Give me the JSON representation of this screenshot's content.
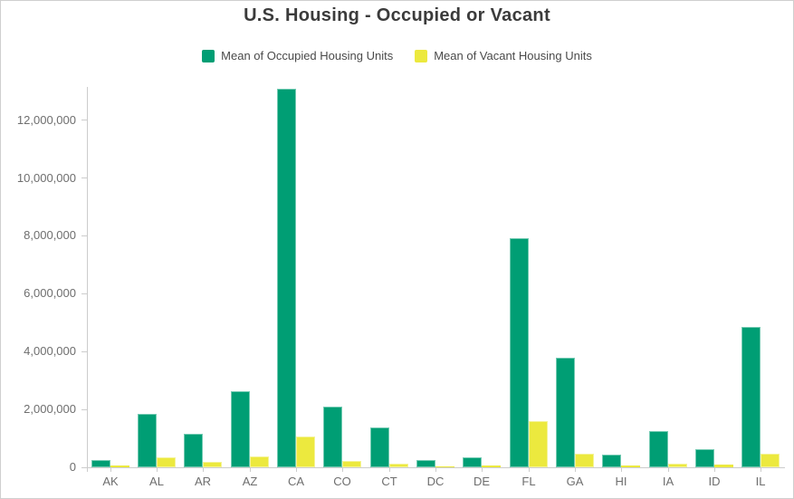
{
  "title": "U.S. Housing - Occupied or Vacant",
  "legend": {
    "items": [
      {
        "label": "Mean of Occupied Housing Units",
        "color": "#009e74"
      },
      {
        "label": "Mean of Vacant Housing Units",
        "color": "#ece93e"
      }
    ]
  },
  "chart_data": {
    "type": "bar",
    "title": "U.S. Housing - Occupied or Vacant",
    "categories": [
      "AK",
      "AL",
      "AR",
      "AZ",
      "CA",
      "CO",
      "CT",
      "DC",
      "DE",
      "FL",
      "GA",
      "HI",
      "IA",
      "ID",
      "IL"
    ],
    "series": [
      {
        "name": "Mean of Occupied Housing Units",
        "color": "#009e74",
        "values": [
          240000,
          1860000,
          1150000,
          2620000,
          13080000,
          2090000,
          1370000,
          265000,
          340000,
          7930000,
          3790000,
          440000,
          1250000,
          640000,
          4840000
        ]
      },
      {
        "name": "Mean of Vacant Housing Units",
        "color": "#ece93e",
        "values": [
          55000,
          345000,
          185000,
          365000,
          1075000,
          225000,
          130000,
          30000,
          55000,
          1600000,
          480000,
          75000,
          125000,
          85000,
          480000
        ]
      }
    ],
    "xlabel": "",
    "ylabel": "",
    "ylim": [
      0,
      13150000
    ],
    "yticks": [
      0,
      2000000,
      4000000,
      6000000,
      8000000,
      10000000,
      12000000
    ],
    "ytick_labels": [
      "0",
      "2,000,000",
      "4,000,000",
      "6,000,000",
      "8,000,000",
      "10,000,000",
      "12,000,000"
    ],
    "grid": false,
    "legend_position": "top"
  },
  "colors": {
    "axis_line": "#cccccc",
    "tick_label": "#6e6e6e",
    "title_text": "#3b3b3b",
    "legend_text": "#4a4a4a",
    "border": "#cfcfcf",
    "background": "#ffffff"
  }
}
